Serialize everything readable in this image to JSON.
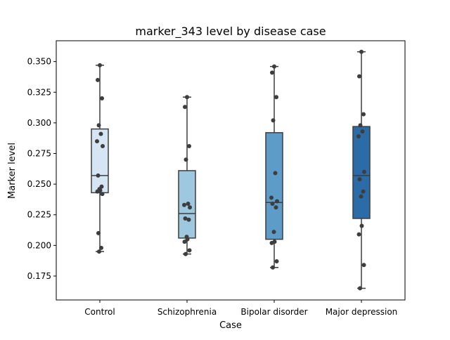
{
  "chart_data": {
    "type": "box",
    "title": "marker_343 level by disease case",
    "xlabel": "Case",
    "ylabel": "Marker level",
    "categories": [
      "Control",
      "Schizophrenia",
      "Bipolar disorder",
      "Major depression"
    ],
    "ylim": [
      0.1555,
      0.367
    ],
    "yticks": [
      0.175,
      0.2,
      0.225,
      0.25,
      0.275,
      0.3,
      0.325,
      0.35
    ],
    "ytick_labels": [
      "0.175",
      "0.200",
      "0.225",
      "0.250",
      "0.275",
      "0.300",
      "0.325",
      "0.350"
    ],
    "grid": false,
    "legend": "none",
    "boxes": [
      {
        "category": "Control",
        "min": 0.195,
        "q1": 0.243,
        "median": 0.257,
        "q3": 0.295,
        "max": 0.347,
        "color": "#d6e5f3"
      },
      {
        "category": "Schizophrenia",
        "min": 0.193,
        "q1": 0.206,
        "median": 0.226,
        "q3": 0.261,
        "max": 0.321,
        "color": "#9dc8e0"
      },
      {
        "category": "Bipolar disorder",
        "min": 0.182,
        "q1": 0.205,
        "median": 0.235,
        "q3": 0.292,
        "max": 0.346,
        "color": "#5d9cc9"
      },
      {
        "category": "Major depression",
        "min": 0.165,
        "q1": 0.222,
        "median": 0.257,
        "q3": 0.297,
        "max": 0.358,
        "color": "#2b6ca8"
      }
    ],
    "points": [
      [
        0.347,
        0.335,
        0.32,
        0.298,
        0.291,
        0.285,
        0.281,
        0.257,
        0.248,
        0.246,
        0.245,
        0.244,
        0.242,
        0.21,
        0.198,
        0.195
      ],
      [
        0.321,
        0.313,
        0.281,
        0.27,
        0.234,
        0.233,
        0.231,
        0.222,
        0.221,
        0.207,
        0.205,
        0.203,
        0.196,
        0.193
      ],
      [
        0.346,
        0.341,
        0.321,
        0.302,
        0.259,
        0.239,
        0.236,
        0.234,
        0.231,
        0.211,
        0.203,
        0.202,
        0.187,
        0.182
      ],
      [
        0.358,
        0.338,
        0.307,
        0.298,
        0.293,
        0.289,
        0.26,
        0.254,
        0.244,
        0.24,
        0.216,
        0.209,
        0.184,
        0.165
      ]
    ],
    "point_color": "#3d3d3d",
    "line_color": "#3d3d3d"
  }
}
